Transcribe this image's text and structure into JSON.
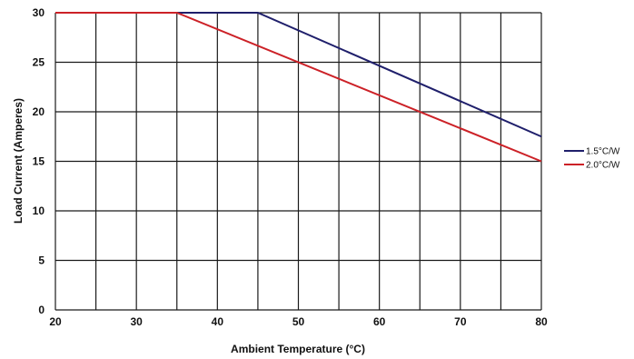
{
  "chart_data": {
    "type": "line",
    "xlabel": "Ambient Temperature (°C)",
    "ylabel": "Load Current (Amperes)",
    "xlim": [
      20,
      80
    ],
    "ylim": [
      0,
      30
    ],
    "x_ticks": [
      20,
      30,
      40,
      50,
      60,
      70,
      80
    ],
    "y_ticks": [
      0,
      5,
      10,
      15,
      20,
      25,
      30
    ],
    "x_minor_step": 5,
    "grid": true,
    "legend_position": "right",
    "series": [
      {
        "name": "1.5°C/W",
        "color": "#1f1f6b",
        "x": [
          20,
          45,
          80
        ],
        "y": [
          30,
          30,
          17.5
        ]
      },
      {
        "name": "2.0°C/W",
        "color": "#cc2127",
        "x": [
          20,
          35,
          80
        ],
        "y": [
          30,
          30,
          15
        ]
      }
    ]
  }
}
